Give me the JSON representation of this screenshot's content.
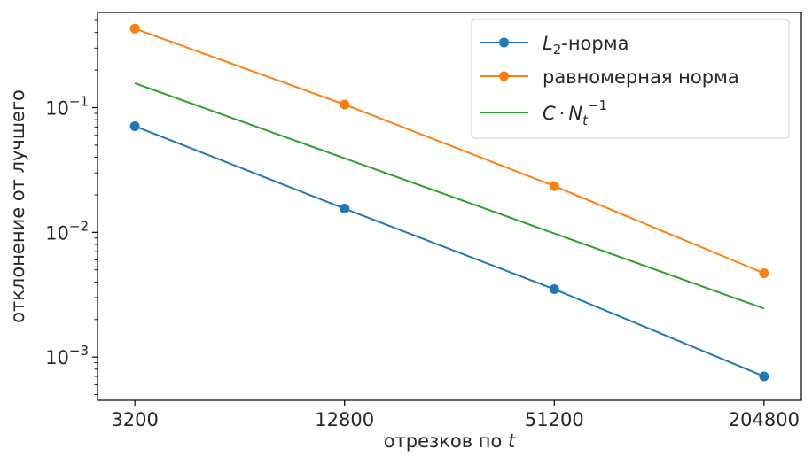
{
  "chart_data": {
    "type": "line",
    "xlabel": "отрезков по t",
    "ylabel": "отклонение от лучшего",
    "x_scale": "log",
    "y_scale": "log",
    "xlim": [
      2500,
      262144
    ],
    "ylim": [
      0.00045,
      0.58
    ],
    "x_ticks": [
      3200,
      12800,
      51200,
      204800
    ],
    "x_tick_labels": [
      "3200",
      "12800",
      "51200",
      "204800"
    ],
    "y_ticks": [
      0.001,
      0.01,
      0.1
    ],
    "y_tick_labels": [
      "10",
      "10",
      "10"
    ],
    "y_tick_exponents": [
      "−3",
      "−2",
      "−1"
    ],
    "grid": false,
    "legend_position": "top-right",
    "series": [
      {
        "name": "L₂-норма",
        "legend_main": "L",
        "legend_sub": "2",
        "legend_rest": "-норма",
        "color": "#1f77b4",
        "markers": true,
        "x": [
          3200,
          12800,
          51200,
          204800
        ],
        "y": [
          0.071,
          0.0155,
          0.0035,
          0.0007
        ]
      },
      {
        "name": "равномерная норма",
        "color": "#ff7f0e",
        "markers": true,
        "x": [
          3200,
          12800,
          51200,
          204800
        ],
        "y": [
          0.43,
          0.106,
          0.0235,
          0.0047
        ]
      },
      {
        "name": "C · N_t^{-1}",
        "legend_c": "C",
        "legend_dot": "·",
        "legend_n": "N",
        "legend_sub": "t",
        "legend_sup": "−1",
        "color": "#2ca02c",
        "markers": false,
        "x": [
          3200,
          204800
        ],
        "y": [
          0.157,
          0.00245
        ]
      }
    ]
  }
}
